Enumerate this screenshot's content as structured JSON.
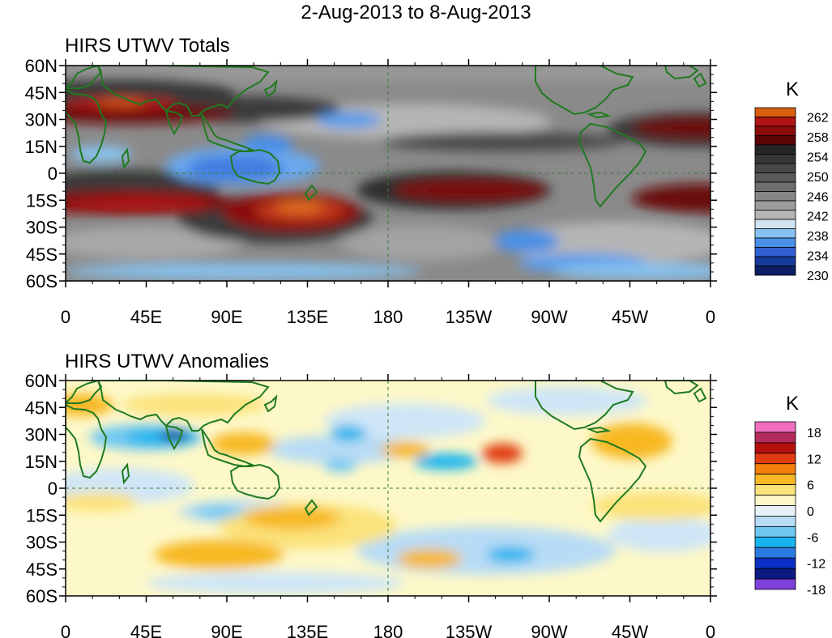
{
  "title": "2-Aug-2013 to 8-Aug-2013",
  "panels": [
    {
      "title": "HIRS UTWV Totals",
      "unit": "K",
      "colorbar": {
        "labels": [
          "262",
          "258",
          "254",
          "250",
          "246",
          "242",
          "238",
          "234",
          "230"
        ],
        "colors": [
          "#d95f0e",
          "#b01414",
          "#8b0a0a",
          "#5a0505",
          "#262626",
          "#363636",
          "#474747",
          "#595959",
          "#6e6e6e",
          "#858585",
          "#9c9c9c",
          "#b5b5b5",
          "#cfe3f0",
          "#87c3f0",
          "#4a8fe6",
          "#2f5fd0",
          "#163a99",
          "#0c1f66"
        ]
      },
      "map": {
        "base_color": "#8a8a8a"
      }
    },
    {
      "title": "HIRS UTWV Anomalies",
      "unit": "K",
      "colorbar": {
        "labels": [
          "18",
          "12",
          "6",
          "0",
          "-6",
          "-12",
          "-18"
        ],
        "colors": [
          "#f26fbf",
          "#b32d5c",
          "#b30f0f",
          "#e03a10",
          "#f27f0a",
          "#f7b824",
          "#fbe27a",
          "#fdf6c9",
          "#e8f1fa",
          "#b8dcf5",
          "#6fc8f2",
          "#16b4ee",
          "#2a7be0",
          "#0c2fc6",
          "#0a1a80",
          "#7f3fdb"
        ]
      },
      "map": {
        "base_color": "#fdf8c8"
      }
    }
  ],
  "axes": {
    "lat_labels": [
      "60N",
      "45N",
      "30N",
      "15N",
      "0",
      "15S",
      "30S",
      "45S",
      "60S"
    ],
    "lon_labels": [
      "0",
      "45E",
      "90E",
      "135E",
      "180",
      "135W",
      "90W",
      "45W",
      "0"
    ]
  },
  "colors": {
    "coast": "#1f7a1f",
    "grid_dash": "#3c7a3c"
  }
}
